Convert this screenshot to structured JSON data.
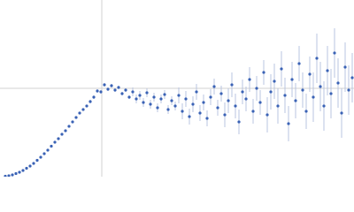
{
  "chart_data": {
    "type": "scatter",
    "x": [
      6,
      10,
      14,
      18,
      22,
      26,
      30,
      34,
      38,
      42,
      46,
      50,
      54,
      58,
      62,
      66,
      70,
      74,
      78,
      82,
      86,
      90,
      94,
      98,
      102,
      106,
      110,
      114,
      118,
      122,
      126,
      130,
      134,
      138,
      142,
      146,
      150,
      154,
      158,
      162,
      166,
      170,
      174,
      178,
      182,
      186,
      190,
      194,
      198,
      202,
      206,
      210,
      214,
      218,
      222,
      226,
      230,
      234,
      238,
      242,
      246,
      250,
      254,
      258,
      262,
      266,
      270,
      274,
      278,
      282,
      286,
      290,
      294,
      298,
      302,
      306,
      310,
      314,
      318,
      322,
      326,
      330,
      334,
      338,
      342,
      346,
      350,
      354,
      358,
      362,
      366,
      370,
      374,
      378,
      382,
      386,
      390,
      394,
      398
    ],
    "series": [
      {
        "color": "#3a62b5",
        "error_color": "#b8c4e0",
        "values": [
          0.5,
          1,
          2,
          3.5,
          5,
          7,
          9.5,
          12,
          15,
          18.5,
          22,
          26,
          30,
          34.5,
          39,
          43,
          48,
          52,
          57,
          62,
          67,
          72,
          76,
          80,
          85,
          90,
          97,
          96,
          104,
          99,
          103,
          98,
          101,
          94,
          98,
          90,
          96,
          88,
          92,
          84,
          95,
          82,
          90,
          78,
          88,
          93,
          76,
          86,
          80,
          92,
          74,
          88,
          68,
          82,
          96,
          72,
          84,
          66,
          90,
          102,
          78,
          94,
          70,
          86,
          104,
          80,
          62,
          96,
          88,
          110,
          74,
          100,
          84,
          118,
          70,
          96,
          108,
          80,
          122,
          92,
          60,
          110,
          86,
          128,
          98,
          74,
          116,
          90,
          134,
          102,
          80,
          120,
          94,
          140,
          106,
          72,
          124,
          98,
          112
        ],
        "errors": [
          0.5,
          0.5,
          0.5,
          0.5,
          0.5,
          0.5,
          0.5,
          0.5,
          0.5,
          0.5,
          0.5,
          0.5,
          0.5,
          0.5,
          0.5,
          0.5,
          0.5,
          0.5,
          0.5,
          0.5,
          0.5,
          0.5,
          0.5,
          0.5,
          2,
          2,
          2,
          2,
          2,
          2,
          2,
          2,
          2,
          2,
          2,
          2,
          5,
          5,
          5,
          5,
          5,
          5,
          5,
          5,
          5,
          5,
          5,
          5,
          5,
          9,
          9,
          9,
          9,
          9,
          9,
          9,
          9,
          9,
          9,
          9,
          9,
          9,
          14,
          14,
          14,
          14,
          14,
          14,
          14,
          14,
          14,
          14,
          14,
          14,
          20,
          20,
          20,
          20,
          20,
          20,
          20,
          20,
          20,
          20,
          20,
          20,
          20,
          28,
          28,
          28,
          28,
          28,
          28,
          28,
          28,
          28,
          28,
          28,
          28
        ]
      }
    ],
    "xlim": [
      0,
      400
    ],
    "ylim": [
      0,
      200
    ],
    "xticks": [
      115
    ],
    "yticks": [
      100
    ],
    "grid": true
  }
}
